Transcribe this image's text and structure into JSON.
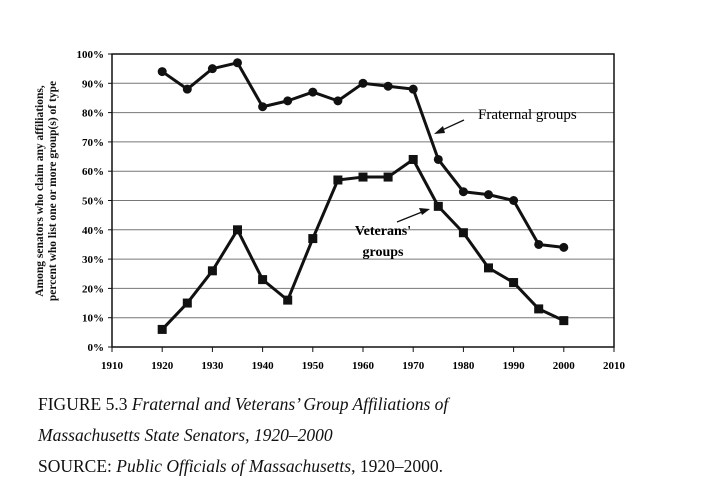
{
  "chart_data": {
    "type": "line",
    "ylabel": [
      "Among senators who claim any affiliations,",
      "percent who list one or more group(s) of type"
    ],
    "xlim": [
      1910,
      2010
    ],
    "ylim": [
      0,
      100
    ],
    "x_ticks": [
      "1910",
      "1920",
      "1930",
      "1940",
      "1950",
      "1960",
      "1970",
      "1980",
      "1990",
      "2000",
      "2010"
    ],
    "y_ticks": [
      "0%",
      "10%",
      "20%",
      "30%",
      "40%",
      "50%",
      "60%",
      "70%",
      "80%",
      "90%",
      "100%"
    ],
    "grid": true,
    "x": [
      1920,
      1925,
      1930,
      1935,
      1940,
      1945,
      1950,
      1955,
      1960,
      1965,
      1970,
      1975,
      1980,
      1985,
      1990,
      1995,
      2000
    ],
    "series": [
      {
        "name": "Fraternal groups",
        "marker": "circle",
        "values": [
          94,
          88,
          95,
          97,
          82,
          84,
          87,
          84,
          90,
          89,
          88,
          64,
          53,
          52,
          50,
          35,
          34
        ]
      },
      {
        "name": "Veterans' groups",
        "marker": "square",
        "values": [
          6,
          15,
          26,
          40,
          23,
          16,
          37,
          57,
          58,
          58,
          64,
          48,
          39,
          27,
          22,
          13,
          9
        ]
      }
    ],
    "annotations": [
      {
        "text": "Fraternal groups",
        "points_to": "Fraternal groups"
      },
      {
        "text": [
          "Veterans'",
          "groups"
        ],
        "points_to": "Veterans' groups"
      }
    ]
  },
  "caption": {
    "figure_label": "FIGURE 5.3",
    "title_line1": "Fraternal and Veterans’ Group Affiliations of",
    "title_line2": "Massachusetts State Senators, 1920–2000",
    "source_label": "SOURCE:",
    "source_title": "Public Officials of Massachusetts",
    "source_years": ", 1920–2000."
  }
}
